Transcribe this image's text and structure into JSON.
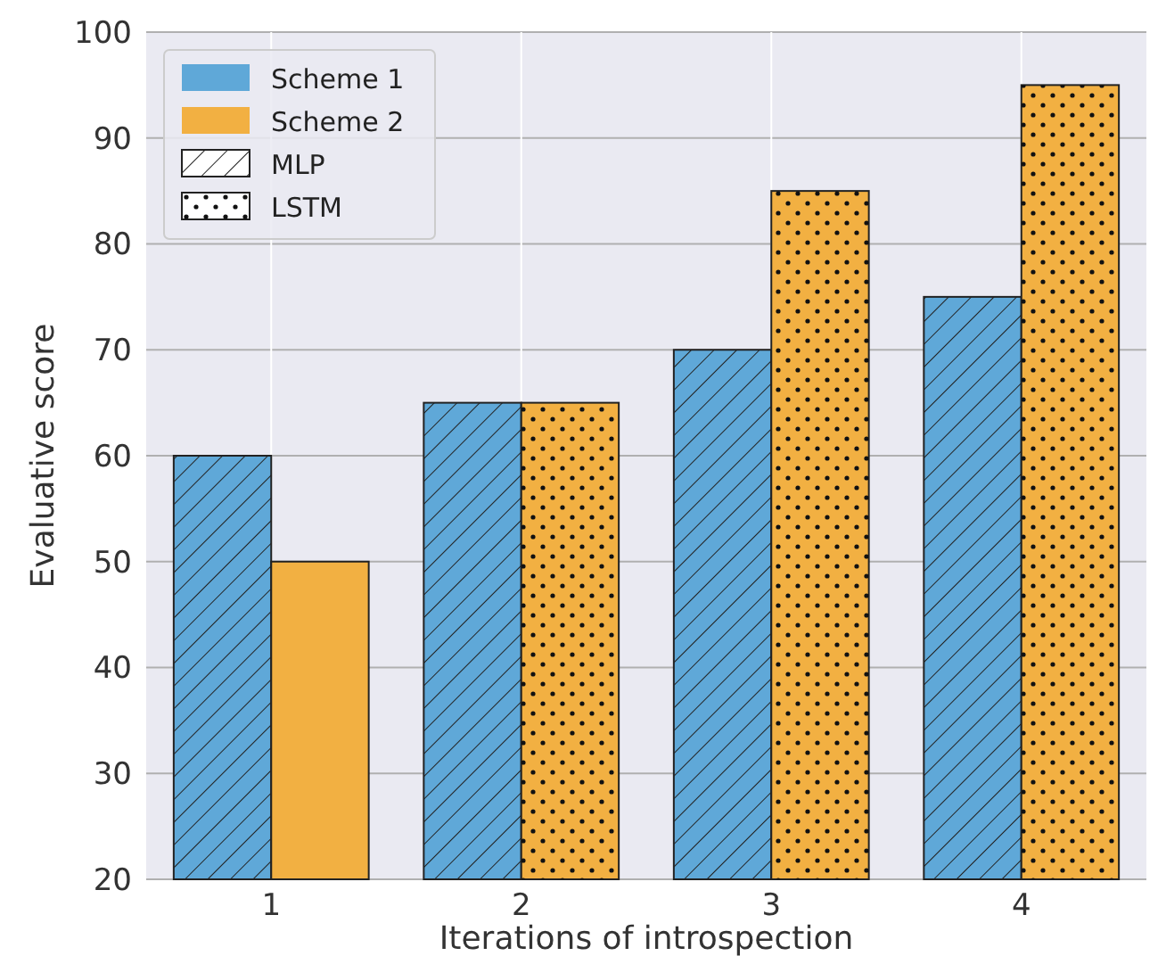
{
  "chart_data": {
    "type": "bar",
    "xlabel": "Iterations of introspection",
    "ylabel": "Evaluative score",
    "categories": [
      "1",
      "2",
      "3",
      "4"
    ],
    "series": [
      {
        "name": "Scheme 1",
        "color": "#5fa8d8",
        "values": [
          60,
          65,
          70,
          75
        ]
      },
      {
        "name": "Scheme 2",
        "color": "#f2b042",
        "values": [
          50,
          65,
          85,
          95
        ]
      }
    ],
    "annotations": [
      "MLP",
      "LSTM"
    ],
    "ylim": [
      20,
      100
    ],
    "yticks": [
      20,
      30,
      40,
      50,
      60,
      70,
      80,
      90,
      100
    ],
    "grid": true,
    "legend": "top left"
  }
}
